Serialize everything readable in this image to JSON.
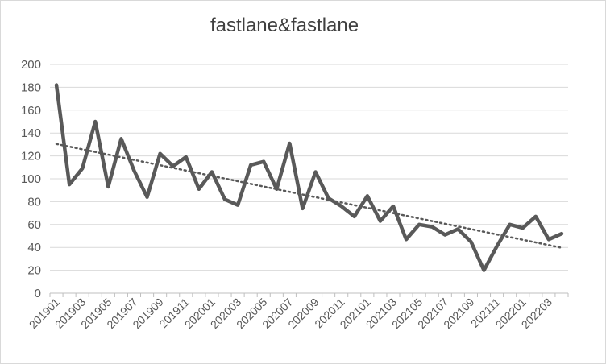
{
  "chart_data": {
    "type": "line",
    "title": "fastlane&fastlane",
    "xlabel": "",
    "ylabel": "",
    "ylim": [
      0,
      200
    ],
    "y_ticks": [
      0,
      20,
      40,
      60,
      80,
      100,
      120,
      140,
      160,
      180,
      200
    ],
    "grid": "horizontal",
    "legend": "none",
    "x": [
      "201901",
      "201902",
      "201903",
      "201904",
      "201905",
      "201906",
      "201907",
      "201908",
      "201909",
      "201910",
      "201911",
      "201912",
      "202001",
      "202002",
      "202003",
      "202004",
      "202005",
      "202006",
      "202007",
      "202008",
      "202009",
      "202010",
      "202011",
      "202012",
      "202101",
      "202102",
      "202103",
      "202104",
      "202105",
      "202106",
      "202107",
      "202108",
      "202109",
      "202110",
      "202111",
      "202112",
      "202201",
      "202202",
      "202203",
      "202204"
    ],
    "x_tick_labels": [
      "201901",
      "201903",
      "201905",
      "201907",
      "201909",
      "201911",
      "202001",
      "202003",
      "202005",
      "202007",
      "202009",
      "202011",
      "202101",
      "202103",
      "202105",
      "202107",
      "202109",
      "202111",
      "202201",
      "202203"
    ],
    "series": [
      {
        "color": "#595959",
        "values": [
          182,
          95,
          109,
          150,
          93,
          135,
          107,
          84,
          122,
          111,
          119,
          91,
          106,
          82,
          77,
          112,
          115,
          91,
          131,
          74,
          106,
          83,
          76,
          67,
          85,
          63,
          76,
          47,
          60,
          58,
          51,
          56,
          45,
          20,
          41,
          60,
          57,
          67,
          47,
          52
        ]
      }
    ],
    "trendline": {
      "type": "linear",
      "style": "dotted",
      "color": "#595959"
    }
  }
}
